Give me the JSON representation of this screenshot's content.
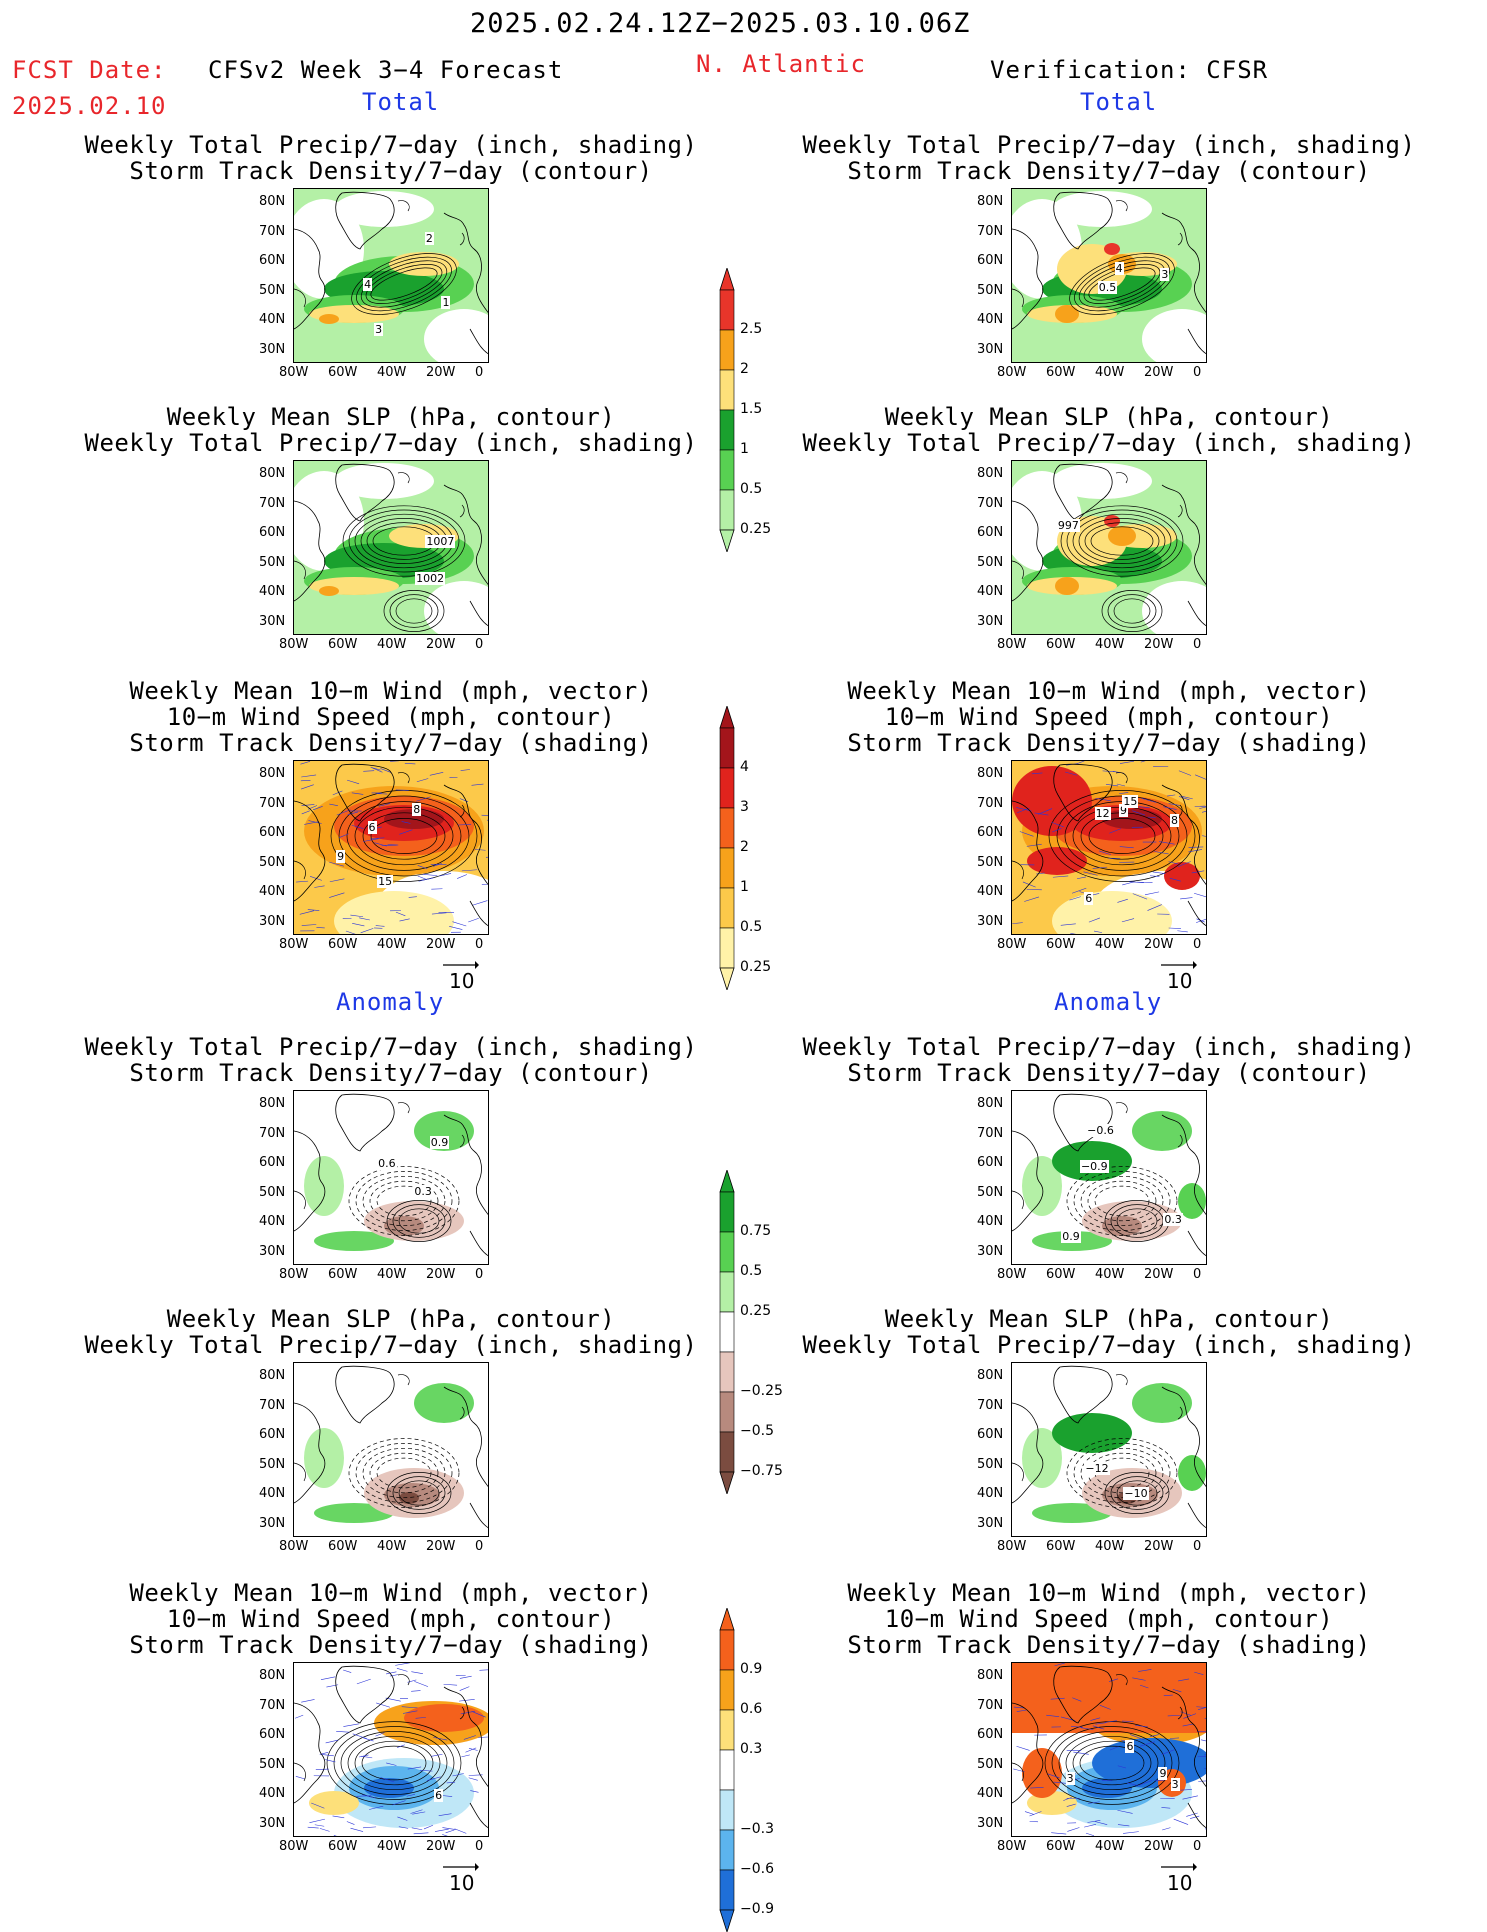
{
  "header": {
    "date_range": "2025.02.24.12Z−2025.03.10.06Z",
    "fcst_label": "FCST Date:",
    "fcst_date": "2025.02.10",
    "model_title": "CFSv2 Week 3−4 Forecast",
    "region": "N. Atlantic",
    "verification": "Verification: CFSR",
    "left_total": "Total",
    "right_total": "Total",
    "left_anomaly": "Anomaly",
    "right_anomaly": "Anomaly"
  },
  "axes": {
    "lat_ticks": [
      "80N",
      "70N",
      "60N",
      "50N",
      "40N",
      "30N"
    ],
    "lon_ticks": [
      "80W",
      "60W",
      "40W",
      "20W",
      "0"
    ]
  },
  "panels": {
    "precip_storm": [
      "Weekly Total Precip/7−day (inch, shading)",
      "Storm Track Density/7−day (contour)"
    ],
    "slp_precip": [
      "Weekly Mean SLP (hPa, contour)",
      "Weekly Total Precip/7−day (inch, shading)"
    ],
    "wind_storm": [
      "Weekly Mean 10−m Wind (mph, vector)",
      "10−m Wind Speed (mph, contour)",
      "Storm Track Density/7−day (shading)"
    ]
  },
  "contour_labels": {
    "fc_total_precip": [
      "4",
      "3",
      "2",
      "1"
    ],
    "obs_total_precip": [
      "4",
      "3",
      "0.5"
    ],
    "fc_total_slp": [
      "1007",
      "1002"
    ],
    "obs_total_slp": [
      "997"
    ],
    "fc_total_wind": [
      "6",
      "9",
      "15",
      "8"
    ],
    "obs_total_wind": [
      "9",
      "15",
      "8",
      "12",
      "6"
    ],
    "fc_anom_precip": [
      "0.9",
      "0.6",
      "0.3"
    ],
    "obs_anom_precip": [
      "0.9",
      "0.3",
      "−0.6",
      "−0.9"
    ],
    "obs_anom_slp": [
      "−10",
      "−12"
    ],
    "fc_anom_wind": [
      "6"
    ],
    "obs_anom_wind": [
      "3",
      "6",
      "9",
      "3"
    ]
  },
  "vector_ref": "10",
  "colorbars": [
    {
      "name": "precip_total",
      "labels": [
        "2.5",
        "2",
        "1.5",
        "1",
        "0.5",
        "0.25"
      ],
      "colors": [
        "#e8352a",
        "#f7a21b",
        "#fde07a",
        "#1aa12e",
        "#58d152",
        "#b4f0a6"
      ]
    },
    {
      "name": "storm_total",
      "labels": [
        "4",
        "3",
        "2",
        "1",
        "0.5",
        "0.25"
      ],
      "colors": [
        "#a3151b",
        "#e0231d",
        "#f4611c",
        "#f7a21b",
        "#fcc94a",
        "#fff2a8"
      ]
    },
    {
      "name": "precip_anom",
      "labels": [
        "0.75",
        "0.5",
        "0.25",
        "−0.25",
        "−0.5",
        "−0.75"
      ],
      "colors": [
        "#1aa12e",
        "#58d152",
        "#b4f0a6",
        "#ffffff",
        "#e6c6bd",
        "#b78a7e",
        "#7b4c40"
      ]
    },
    {
      "name": "storm_anom",
      "labels": [
        "0.9",
        "0.6",
        "0.3",
        "−0.3",
        "−0.6",
        "−0.9"
      ],
      "colors": [
        "#f4611c",
        "#f7a21b",
        "#fde07a",
        "#ffffff",
        "#bfe7f7",
        "#5cb4ee",
        "#1f6fd8"
      ]
    }
  ],
  "chart_data": {
    "type": "map-panels",
    "title": "2025.02.24.12Z−2025.03.10.06Z",
    "region": "N. Atlantic",
    "columns": [
      "CFSv2 Week 3−4 Forecast",
      "Verification: CFSR"
    ],
    "rows": [
      "Total: Precip + Storm Track",
      "Total: SLP + Precip",
      "Total: Wind + Storm Track",
      "Anomaly: Precip + Storm Track",
      "Anomaly: SLP + Precip",
      "Anomaly: Wind + Storm Track"
    ],
    "lat_range": [
      25,
      85
    ],
    "lon_range": [
      -80,
      0
    ]
  }
}
